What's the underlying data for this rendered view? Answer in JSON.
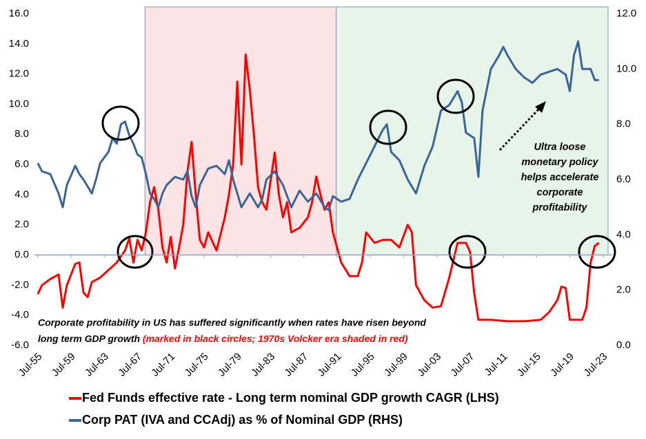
{
  "chart_data": {
    "type": "line",
    "xlim": [
      1955.1,
      2024.6
    ],
    "xticks": [
      {
        "value": 1955.5,
        "label": "Jul-55"
      },
      {
        "value": 1959.5,
        "label": "Jul-59"
      },
      {
        "value": 1963.5,
        "label": "Jul-63"
      },
      {
        "value": 1967.5,
        "label": "Jul-67"
      },
      {
        "value": 1971.5,
        "label": "Jul-71"
      },
      {
        "value": 1975.5,
        "label": "Jul-75"
      },
      {
        "value": 1979.5,
        "label": "Jul-79"
      },
      {
        "value": 1983.5,
        "label": "Jul-83"
      },
      {
        "value": 1987.5,
        "label": "Jul-87"
      },
      {
        "value": 1991.5,
        "label": "Jul-91"
      },
      {
        "value": 1995.5,
        "label": "Jul-95"
      },
      {
        "value": 1999.5,
        "label": "Jul-99"
      },
      {
        "value": 2003.5,
        "label": "Jul-03"
      },
      {
        "value": 2007.5,
        "label": "Jul-07"
      },
      {
        "value": 2011.5,
        "label": "Jul-11"
      },
      {
        "value": 2015.5,
        "label": "Jul-15"
      },
      {
        "value": 2019.5,
        "label": "Jul-19"
      },
      {
        "value": 2023.5,
        "label": "Jul-23"
      }
    ],
    "ylim": [
      -6,
      16
    ],
    "yticks": [
      {
        "value": -6,
        "label": "-6.0"
      },
      {
        "value": -4,
        "label": "-4.0"
      },
      {
        "value": -2,
        "label": "-2.0"
      },
      {
        "value": 0,
        "label": "0.0"
      },
      {
        "value": 2,
        "label": "2.0"
      },
      {
        "value": 4,
        "label": "4.0"
      },
      {
        "value": 6,
        "label": "6.0"
      },
      {
        "value": 8,
        "label": "8.0"
      },
      {
        "value": 10,
        "label": "10.0"
      },
      {
        "value": 12,
        "label": "12.0"
      },
      {
        "value": 14,
        "label": "14.0"
      },
      {
        "value": 16,
        "label": "16.0"
      }
    ],
    "y2lim": [
      0,
      12
    ],
    "y2ticks": [
      {
        "value": 0,
        "label": "0.0"
      },
      {
        "value": 2,
        "label": "2.0"
      },
      {
        "value": 4,
        "label": "4.0"
      },
      {
        "value": 6,
        "label": "6.0"
      },
      {
        "value": 8,
        "label": "8.0"
      },
      {
        "value": 10,
        "label": "10.0"
      },
      {
        "value": 12,
        "label": "12.0"
      }
    ],
    "shaded_regions": [
      {
        "from": 1968.4,
        "to": 1991.4,
        "color": "#fce4e4"
      },
      {
        "from": 1991.4,
        "to": 2024.1,
        "color": "#e7f4ea"
      }
    ],
    "series": [
      {
        "name": "Fed Funds effective rate - Long term nominal GDP growth CAGR (LHS)",
        "color": "#ff0000",
        "x": [
          1955.5,
          1956,
          1957,
          1958,
          1958.5,
          1959,
          1960,
          1960.5,
          1961,
          1961.5,
          1962,
          1963,
          1964,
          1965,
          1966,
          1966.5,
          1967,
          1967.5,
          1968,
          1968.5,
          1969,
          1969.5,
          1970,
          1970.5,
          1971,
          1971.5,
          1972,
          1972.5,
          1973,
          1973.5,
          1974,
          1974.5,
          1975,
          1975.5,
          1976,
          1977,
          1978,
          1978.5,
          1979,
          1979.5,
          1980,
          1980.5,
          1981,
          1981.5,
          1982,
          1982.5,
          1983,
          1984,
          1984.5,
          1985,
          1985.5,
          1986,
          1987,
          1988,
          1988.5,
          1989,
          1989.5,
          1990,
          1990.5,
          1991,
          1992,
          1993,
          1994,
          1994.5,
          1995,
          1996,
          1997,
          1998,
          1999,
          2000,
          2000.5,
          2001,
          2002,
          2003,
          2004,
          2005,
          2006,
          2007,
          2007.5,
          2008,
          2008.5,
          2010,
          2012,
          2014,
          2016,
          2017,
          2018,
          2018.5,
          2019,
          2019.5,
          2021,
          2021.5,
          2022,
          2022.5,
          2023
        ],
        "values": [
          -2.6,
          -2.0,
          -1.6,
          -1.3,
          -3.5,
          -2.0,
          -0.6,
          -0.5,
          -2.5,
          -2.8,
          -1.8,
          -1.5,
          -1.0,
          -0.5,
          0.3,
          1.1,
          -0.5,
          1.0,
          0.3,
          1.5,
          3.5,
          4.5,
          3.0,
          0.5,
          -0.5,
          1.2,
          -0.9,
          0.5,
          2.0,
          5.5,
          7.5,
          4.0,
          1.0,
          0.5,
          1.5,
          0.3,
          2.5,
          4.0,
          6.0,
          11.5,
          6.0,
          13.3,
          11.0,
          8.0,
          4.5,
          3.5,
          3.0,
          6.8,
          4.0,
          2.5,
          3.5,
          1.5,
          1.8,
          2.5,
          3.5,
          5.2,
          4.0,
          3.0,
          3.5,
          1.5,
          -0.5,
          -1.4,
          -1.4,
          -0.5,
          1.5,
          0.8,
          1.0,
          1.0,
          0.5,
          2.0,
          1.5,
          -2.0,
          -3.0,
          -3.5,
          -3.4,
          -1.5,
          0.8,
          0.8,
          0.2,
          -2.5,
          -4.3,
          -4.3,
          -4.4,
          -4.4,
          -4.3,
          -3.8,
          -3.0,
          -2.1,
          -2.2,
          -4.3,
          -4.3,
          -3.5,
          -0.5,
          0.6,
          0.8
        ]
      },
      {
        "name": "Corp PAT (IVA and CCAdj) as % of Nominal GDP (RHS)",
        "color": "#3b6496",
        "axis": "y2",
        "x": [
          1955.5,
          1956,
          1957,
          1958,
          1958.5,
          1959,
          1960,
          1960.5,
          1961,
          1962,
          1962.5,
          1963,
          1964,
          1964.5,
          1965,
          1965.5,
          1966,
          1966.5,
          1967,
          1967.5,
          1968,
          1968.5,
          1969,
          1969.5,
          1970,
          1970.5,
          1971,
          1972,
          1973,
          1973.5,
          1974,
          1974.5,
          1975,
          1976,
          1977,
          1978,
          1978.5,
          1979,
          1980,
          1981,
          1982,
          1982.5,
          1983,
          1984,
          1985,
          1986,
          1987,
          1988,
          1989,
          1990,
          1990.5,
          1991,
          1992,
          1993,
          1994,
          1995,
          1996,
          1997,
          1997.5,
          1998,
          1999,
          2000,
          2001,
          2002,
          2003,
          2004,
          2005,
          2006,
          2006.5,
          2007,
          2008,
          2008.5,
          2009,
          2010,
          2011,
          2011.5,
          2012,
          2013,
          2014,
          2015,
          2016,
          2017,
          2018,
          2019,
          2019.5,
          2020,
          2020.5,
          2021,
          2022,
          2022.5,
          2023
        ],
        "values": [
          6.6,
          6.3,
          6.2,
          5.5,
          5.0,
          5.8,
          6.5,
          6.2,
          6.0,
          5.5,
          6.0,
          6.6,
          7.0,
          7.5,
          7.3,
          8.0,
          8.1,
          7.6,
          7.3,
          6.9,
          6.8,
          6.2,
          5.5,
          5.3,
          5.0,
          5.5,
          5.8,
          6.1,
          6.0,
          6.3,
          5.4,
          5.0,
          5.8,
          6.4,
          6.5,
          6.2,
          6.7,
          6.0,
          5.0,
          5.5,
          5.0,
          5.3,
          6.0,
          6.3,
          5.8,
          5.0,
          5.6,
          5.2,
          5.5,
          5.0,
          4.9,
          5.4,
          5.2,
          5.3,
          6.0,
          6.6,
          7.2,
          7.8,
          8.0,
          7.0,
          6.7,
          6.0,
          5.5,
          6.5,
          7.2,
          8.5,
          8.7,
          9.2,
          8.8,
          7.7,
          7.5,
          6.1,
          8.5,
          10.0,
          10.5,
          10.8,
          10.5,
          10.0,
          9.7,
          9.5,
          9.8,
          9.9,
          10.0,
          9.8,
          9.2,
          10.5,
          11.0,
          10.0,
          10.0,
          9.6,
          9.6
        ]
      }
    ],
    "annotation": [
      "Ultra loose",
      "monetary policy",
      "helps accelerate",
      "corporate",
      "profitability"
    ],
    "note": [
      "Corporate profitability in US has suffered significantly when rates have risen beyond",
      "long term GDP growth ",
      "(marked in black circles; 1970s Volcker era shaded in red)"
    ]
  }
}
